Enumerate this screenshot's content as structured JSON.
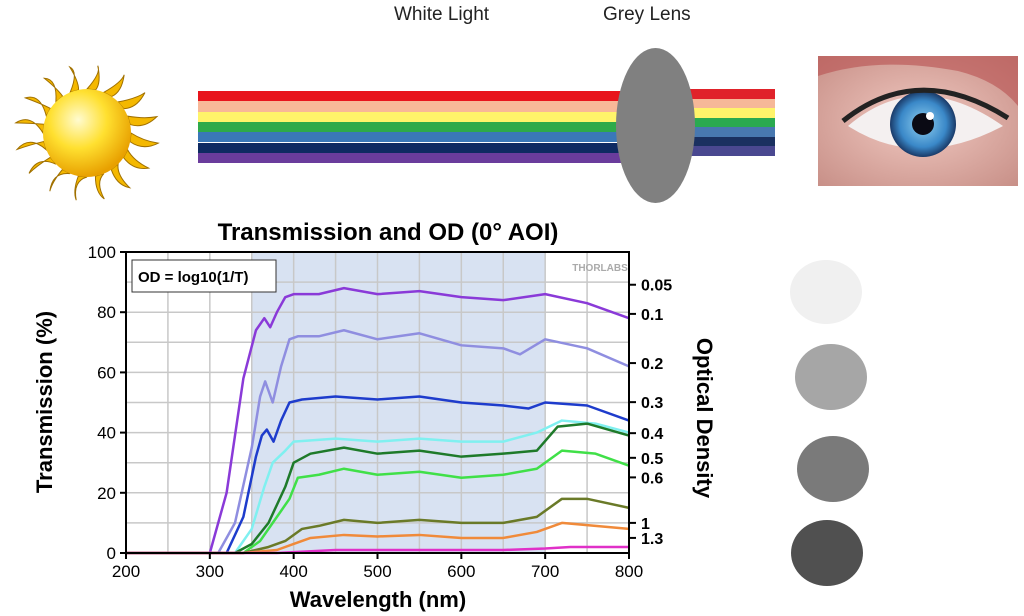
{
  "diagram": {
    "white_light_label": "White Light",
    "grey_lens_label": "Grey Lens",
    "beam_colors": [
      "#e8141c",
      "#f8b898",
      "#fff46a",
      "#2eaa4a",
      "#3a78b8",
      "#0e2a62",
      "#6a3c9c"
    ],
    "beam_colors_after": [
      "#e0222a",
      "#f6b898",
      "#fff46a",
      "#2aaa50",
      "#4878b0",
      "#1a3060",
      "#4a4890"
    ],
    "lens_color": "#808080",
    "filter_swatches": [
      "#f0f0f0",
      "#a6a6a6",
      "#7a7a7a",
      "#505050"
    ]
  },
  "chart_data": {
    "type": "line",
    "title": "Transmission and OD (0° AOI)",
    "xlabel": "Wavelength (nm)",
    "ylabel": "Transmission (%)",
    "y2label": "Optical Density",
    "xlim": [
      200,
      800
    ],
    "ylim": [
      0,
      100
    ],
    "xticks": [
      200,
      300,
      400,
      500,
      600,
      700,
      800
    ],
    "yticks": [
      0,
      20,
      40,
      60,
      80,
      100
    ],
    "y2ticks": [
      "0.05",
      "0.1",
      "0.2",
      "0.3",
      "0.4",
      "0.5",
      "0.6",
      "1",
      "1.3"
    ],
    "y2tick_values": [
      0.05,
      0.1,
      0.2,
      0.3,
      0.4,
      0.5,
      0.6,
      1,
      1.3
    ],
    "grid": true,
    "shaded_region": [
      350,
      700
    ],
    "shaded_color": "#d8e2f2",
    "annotation": "OD = log10(1/T)",
    "watermark": "THORLABS",
    "series": [
      {
        "color": "#8a3ad8",
        "x": [
          200,
          300,
          320,
          340,
          355,
          365,
          372,
          380,
          390,
          400,
          430,
          460,
          500,
          550,
          600,
          650,
          700,
          750,
          800
        ],
        "y": [
          0,
          0,
          20,
          58,
          74,
          78,
          75,
          80,
          85,
          86,
          86,
          88,
          86,
          87,
          85,
          84,
          86,
          83,
          78
        ]
      },
      {
        "color": "#8f8ee0",
        "x": [
          200,
          310,
          330,
          350,
          360,
          366,
          375,
          385,
          395,
          405,
          430,
          460,
          500,
          550,
          600,
          650,
          670,
          700,
          750,
          800
        ],
        "y": [
          0,
          0,
          10,
          35,
          52,
          57,
          50,
          62,
          71,
          72,
          72,
          74,
          71,
          73,
          69,
          68,
          66,
          71,
          68,
          62
        ]
      },
      {
        "color": "#1e3ccc",
        "x": [
          200,
          320,
          340,
          355,
          362,
          368,
          376,
          385,
          395,
          410,
          450,
          500,
          550,
          600,
          650,
          680,
          700,
          750,
          800
        ],
        "y": [
          0,
          0,
          12,
          32,
          39,
          41,
          37,
          44,
          50,
          51,
          52,
          51,
          52,
          50,
          49,
          48,
          50,
          49,
          44
        ]
      },
      {
        "color": "#80f0f0",
        "x": [
          200,
          330,
          350,
          365,
          375,
          390,
          400,
          450,
          500,
          550,
          600,
          650,
          690,
          720,
          760,
          800
        ],
        "y": [
          0,
          0,
          8,
          22,
          30,
          34,
          37,
          38,
          37,
          38,
          37,
          37,
          40,
          44,
          43,
          40
        ]
      },
      {
        "color": "#1e7a2a",
        "x": [
          200,
          330,
          350,
          370,
          380,
          390,
          400,
          420,
          460,
          500,
          550,
          600,
          650,
          690,
          715,
          750,
          800
        ],
        "y": [
          0,
          0,
          3,
          10,
          16,
          22,
          30,
          33,
          35,
          33,
          34,
          32,
          33,
          34,
          42,
          43,
          39
        ]
      },
      {
        "color": "#40e048",
        "x": [
          200,
          340,
          360,
          375,
          385,
          395,
          405,
          430,
          460,
          500,
          550,
          600,
          650,
          690,
          720,
          760,
          800
        ],
        "y": [
          0,
          0,
          4,
          10,
          14,
          18,
          25,
          26,
          28,
          26,
          27,
          25,
          26,
          28,
          34,
          33,
          29
        ]
      },
      {
        "color": "#6a7a28",
        "x": [
          200,
          340,
          370,
          390,
          410,
          430,
          460,
          500,
          550,
          600,
          650,
          690,
          720,
          750,
          800
        ],
        "y": [
          0,
          0,
          2,
          4,
          8,
          9,
          11,
          10,
          11,
          10,
          10,
          12,
          18,
          18,
          15
        ]
      },
      {
        "color": "#f08a3a",
        "x": [
          200,
          340,
          380,
          400,
          420,
          460,
          500,
          550,
          600,
          650,
          690,
          720,
          760,
          800
        ],
        "y": [
          0,
          0,
          1,
          3,
          5,
          6,
          5.5,
          6,
          5,
          5,
          7,
          10,
          9,
          8
        ]
      },
      {
        "color": "#e030c8",
        "x": [
          200,
          380,
          450,
          550,
          650,
          700,
          730,
          800
        ],
        "y": [
          0,
          0,
          1,
          1,
          1,
          1.5,
          2,
          2
        ]
      }
    ]
  }
}
